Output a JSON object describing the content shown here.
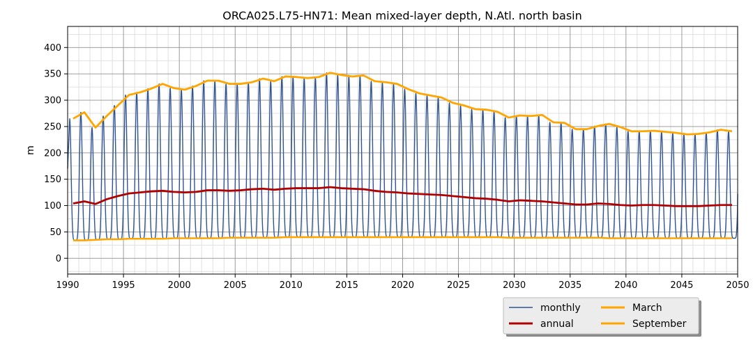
{
  "chart_data": {
    "type": "line",
    "title": "ORCA025.L75-HN71: Mean mixed-layer depth, N.Atl. north basin",
    "xlabel": "",
    "ylabel": "m",
    "xlim": [
      1990,
      2050
    ],
    "ylim": [
      -30,
      440
    ],
    "x_ticks": [
      1990,
      1995,
      2000,
      2005,
      2010,
      2015,
      2020,
      2025,
      2030,
      2035,
      2040,
      2045,
      2050
    ],
    "y_ticks": [
      0,
      50,
      100,
      150,
      200,
      250,
      300,
      350,
      400
    ],
    "grid": true,
    "legend_position": "bottom-right",
    "colors": {
      "monthly": "#2f5590",
      "annual": "#b00000",
      "march": "#ffa500",
      "september": "#ffa500",
      "grid_major": "#909090",
      "grid_minor": "#d8d8d8"
    },
    "years": [
      1990.5,
      1991.5,
      1992.5,
      1993.5,
      1994.5,
      1995.5,
      1996.5,
      1997.5,
      1998.5,
      1999.5,
      2000.5,
      2001.5,
      2002.5,
      2003.5,
      2004.5,
      2005.5,
      2006.5,
      2007.5,
      2008.5,
      2009.5,
      2010.5,
      2011.5,
      2012.5,
      2013.5,
      2014.5,
      2015.5,
      2016.5,
      2017.5,
      2018.5,
      2019.5,
      2020.5,
      2021.5,
      2022.5,
      2023.5,
      2024.5,
      2025.5,
      2026.5,
      2027.5,
      2028.5,
      2029.5,
      2030.5,
      2031.5,
      2032.5,
      2033.5,
      2034.5,
      2035.5,
      2036.5,
      2037.5,
      2038.5,
      2039.5,
      2040.5,
      2041.5,
      2042.5,
      2043.5,
      2044.5,
      2045.5,
      2046.5,
      2047.5,
      2048.5,
      2049.5
    ],
    "series": [
      {
        "name": "annual",
        "values": [
          104,
          108,
          103,
          112,
          118,
          123,
          125,
          127,
          128,
          126,
          125,
          126,
          129,
          129,
          128,
          129,
          131,
          132,
          130,
          132,
          133,
          133,
          133,
          135,
          133,
          132,
          131,
          128,
          126,
          125,
          123,
          122,
          121,
          120,
          118,
          116,
          114,
          113,
          111,
          108,
          110,
          109,
          108,
          106,
          104,
          102,
          102,
          104,
          103,
          101,
          100,
          101,
          101,
          100,
          99,
          99,
          99,
          100,
          101,
          101
        ]
      },
      {
        "name": "March",
        "values": [
          265,
          277,
          248,
          270,
          290,
          310,
          315,
          322,
          331,
          323,
          320,
          327,
          337,
          337,
          331,
          331,
          334,
          341,
          336,
          345,
          344,
          342,
          344,
          352,
          348,
          345,
          347,
          336,
          334,
          331,
          321,
          313,
          309,
          305,
          295,
          290,
          283,
          282,
          278,
          267,
          271,
          270,
          272,
          258,
          257,
          245,
          245,
          251,
          255,
          249,
          241,
          241,
          242,
          240,
          238,
          235,
          236,
          239,
          244,
          241
        ]
      },
      {
        "name": "September",
        "values": [
          34,
          34,
          35,
          36,
          36,
          37,
          37,
          37,
          37,
          38,
          38,
          38,
          38,
          38,
          39,
          39,
          39,
          39,
          39,
          40,
          40,
          40,
          40,
          40,
          40,
          40,
          40,
          40,
          40,
          40,
          40,
          40,
          40,
          40,
          40,
          40,
          40,
          40,
          40,
          39,
          39,
          39,
          39,
          39,
          39,
          39,
          39,
          39,
          38,
          38,
          38,
          38,
          38,
          38,
          38,
          38,
          38,
          38,
          38,
          38
        ]
      }
    ],
    "monthly": {
      "name": "monthly",
      "description_note": "",
      "start_month": [
        1990,
        1
      ],
      "end_value": 122
    },
    "legend": {
      "entries": [
        {
          "label": "monthly",
          "color": "#2f5590",
          "width": 1.5
        },
        {
          "label": "annual",
          "color": "#b00000",
          "width": 3
        },
        {
          "label": "March",
          "color": "#ffa500",
          "width": 3
        },
        {
          "label": "September",
          "color": "#ffa500",
          "width": 3
        }
      ]
    }
  }
}
